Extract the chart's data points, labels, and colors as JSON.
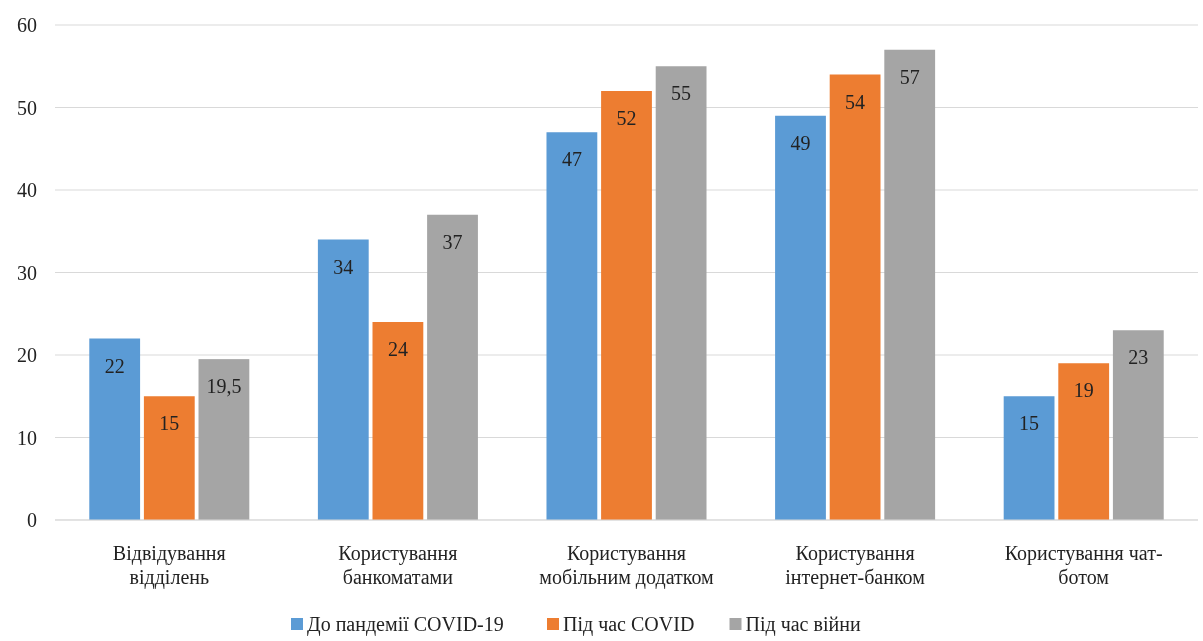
{
  "chart_data": {
    "type": "bar",
    "categories": [
      "Відвідування відділень",
      "Користування банкоматами",
      "Користування мобільним додатком",
      "Користування інтернет-банком",
      "Користування чат-ботом"
    ],
    "series": [
      {
        "name": "До пандемії COVID-19",
        "color": "#5b9bd5",
        "values": [
          22,
          34,
          47,
          49,
          15
        ],
        "value_labels": [
          "22",
          "34",
          "47",
          "49",
          "15"
        ]
      },
      {
        "name": "Під час COVID",
        "color": "#ed7d31",
        "values": [
          15,
          24,
          52,
          54,
          19
        ],
        "value_labels": [
          "15",
          "24",
          "52",
          "54",
          "19"
        ]
      },
      {
        "name": "Під час війни",
        "color": "#a5a5a5",
        "values": [
          19.5,
          37,
          55,
          57,
          23
        ],
        "value_labels": [
          "19,5",
          "37",
          "55",
          "57",
          "23"
        ]
      }
    ],
    "ylim": [
      0,
      60
    ],
    "yticks": [
      0,
      10,
      20,
      30,
      40,
      50,
      60
    ],
    "grid": "y",
    "legend": "bottom"
  }
}
